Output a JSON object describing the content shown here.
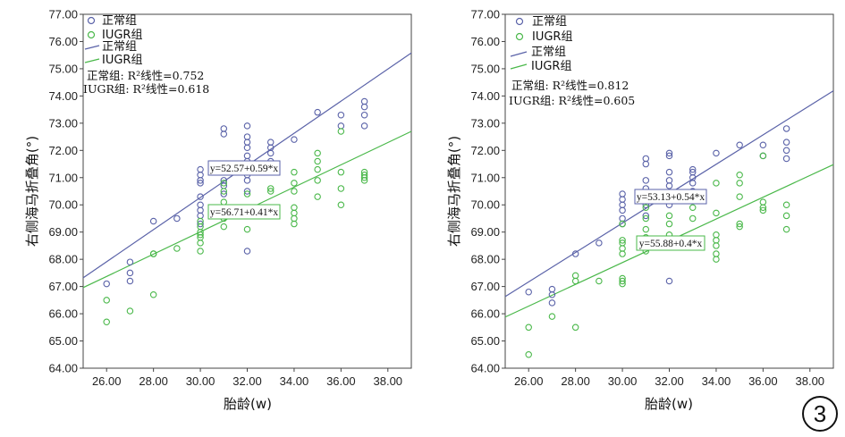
{
  "figure_badge": "3",
  "chart_data": [
    {
      "type": "scatter",
      "ylabel": "右侧海马折叠角(°)",
      "xlabel": "胎龄(w)",
      "xlim": [
        25,
        39
      ],
      "ylim": [
        64,
        77
      ],
      "xticks": [
        "26.00",
        "28.00",
        "30.00",
        "32.00",
        "34.00",
        "36.00",
        "38.00"
      ],
      "xtick_values": [
        26,
        28,
        30,
        32,
        34,
        36,
        38
      ],
      "yticks": [
        "64.00",
        "65.00",
        "66.00",
        "67.00",
        "68.00",
        "69.00",
        "70.00",
        "71.00",
        "72.00",
        "73.00",
        "74.00",
        "75.00",
        "76.00",
        "77.00"
      ],
      "ytick_values": [
        64,
        65,
        66,
        67,
        68,
        69,
        70,
        71,
        72,
        73,
        74,
        75,
        76,
        77
      ],
      "legend": [
        "正常组",
        "IUGR组",
        "正常组",
        "IUGR组"
      ],
      "r2_text": [
        "正常组: R²线性=0.752",
        "IUGR组: R²线性=0.618"
      ],
      "series": [
        {
          "name": "正常组",
          "color": "#5a62a8",
          "fit": {
            "intercept": 52.57,
            "slope": 0.59
          },
          "equation": "y=52.57+0.59*x",
          "points": [
            [
              26,
              67.1
            ],
            [
              27,
              67.9
            ],
            [
              27,
              67.5
            ],
            [
              27,
              67.2
            ],
            [
              28,
              69.4
            ],
            [
              29,
              69.5
            ],
            [
              30,
              71.3
            ],
            [
              30,
              71.1
            ],
            [
              30,
              70.9
            ],
            [
              30,
              70.8
            ],
            [
              30,
              70.3
            ],
            [
              30,
              70.0
            ],
            [
              30,
              69.8
            ],
            [
              30,
              69.6
            ],
            [
              30,
              69.3
            ],
            [
              31,
              72.8
            ],
            [
              31,
              72.6
            ],
            [
              31,
              71.5
            ],
            [
              31,
              71.2
            ],
            [
              31,
              70.9
            ],
            [
              31,
              70.7
            ],
            [
              31,
              70.4
            ],
            [
              32,
              72.9
            ],
            [
              32,
              72.5
            ],
            [
              32,
              72.3
            ],
            [
              32,
              72.1
            ],
            [
              32,
              71.8
            ],
            [
              32,
              71.6
            ],
            [
              32,
              71.3
            ],
            [
              32,
              71.1
            ],
            [
              32,
              70.9
            ],
            [
              32,
              70.5
            ],
            [
              32,
              68.3
            ],
            [
              33,
              72.3
            ],
            [
              33,
              72.1
            ],
            [
              33,
              71.9
            ],
            [
              33,
              71.6
            ],
            [
              33,
              71.4
            ],
            [
              34,
              72.4
            ],
            [
              35,
              73.4
            ],
            [
              36,
              73.3
            ],
            [
              36,
              72.9
            ],
            [
              37,
              73.8
            ],
            [
              37,
              73.6
            ],
            [
              37,
              73.3
            ],
            [
              37,
              72.9
            ]
          ]
        },
        {
          "name": "IUGR组",
          "color": "#4ab84a",
          "fit": {
            "intercept": 56.71,
            "slope": 0.41
          },
          "equation": "y=56.71+0.41*x",
          "points": [
            [
              26,
              66.5
            ],
            [
              26,
              65.7
            ],
            [
              27,
              66.1
            ],
            [
              28,
              66.7
            ],
            [
              28,
              68.2
            ],
            [
              28,
              68.2
            ],
            [
              29,
              68.4
            ],
            [
              30,
              69.4
            ],
            [
              30,
              69.2
            ],
            [
              30,
              69.0
            ],
            [
              30,
              68.9
            ],
            [
              30,
              68.8
            ],
            [
              30,
              68.6
            ],
            [
              30,
              68.3
            ],
            [
              31,
              70.8
            ],
            [
              31,
              70.5
            ],
            [
              31,
              70.1
            ],
            [
              31,
              69.8
            ],
            [
              31,
              69.5
            ],
            [
              31,
              69.2
            ],
            [
              32,
              70.4
            ],
            [
              32,
              69.9
            ],
            [
              32,
              69.6
            ],
            [
              32,
              69.1
            ],
            [
              33,
              70.6
            ],
            [
              33,
              70.5
            ],
            [
              34,
              71.2
            ],
            [
              34,
              70.8
            ],
            [
              34,
              70.5
            ],
            [
              34,
              69.9
            ],
            [
              34,
              69.7
            ],
            [
              34,
              69.5
            ],
            [
              34,
              69.3
            ],
            [
              35,
              71.9
            ],
            [
              35,
              71.6
            ],
            [
              35,
              71.3
            ],
            [
              35,
              70.9
            ],
            [
              35,
              70.3
            ],
            [
              36,
              72.7
            ],
            [
              36,
              71.2
            ],
            [
              36,
              70.6
            ],
            [
              36,
              70.0
            ],
            [
              37,
              71.2
            ],
            [
              37,
              71.1
            ],
            [
              37,
              71.0
            ],
            [
              37,
              70.9
            ]
          ]
        }
      ]
    },
    {
      "type": "scatter",
      "ylabel": "右侧海马折叠角(°)",
      "xlabel": "胎龄(w)",
      "xlim": [
        25,
        39
      ],
      "ylim": [
        64,
        77
      ],
      "xticks": [
        "26.00",
        "28.00",
        "30.00",
        "32.00",
        "34.00",
        "36.00",
        "38.00"
      ],
      "xtick_values": [
        26,
        28,
        30,
        32,
        34,
        36,
        38
      ],
      "yticks": [
        "64.00",
        "65.00",
        "66.00",
        "67.00",
        "68.00",
        "69.00",
        "70.00",
        "71.00",
        "72.00",
        "73.00",
        "74.00",
        "75.00",
        "76.00",
        "77.00"
      ],
      "ytick_values": [
        64,
        65,
        66,
        67,
        68,
        69,
        70,
        71,
        72,
        73,
        74,
        75,
        76,
        77
      ],
      "legend": [
        "正常组",
        "IUGR组",
        "正常组",
        "IUGR组"
      ],
      "r2_text": [
        "正常组: R²线性=0.812",
        "IUGR组: R²线性=0.605"
      ],
      "series": [
        {
          "name": "正常组",
          "color": "#5a62a8",
          "fit": {
            "intercept": 53.13,
            "slope": 0.54
          },
          "equation": "y=53.13+0.54*x",
          "points": [
            [
              26,
              66.8
            ],
            [
              27,
              66.9
            ],
            [
              27,
              66.7
            ],
            [
              27,
              66.4
            ],
            [
              28,
              68.2
            ],
            [
              29,
              68.6
            ],
            [
              30,
              70.4
            ],
            [
              30,
              70.2
            ],
            [
              30,
              70.0
            ],
            [
              30,
              69.8
            ],
            [
              30,
              69.5
            ],
            [
              30,
              69.3
            ],
            [
              31,
              71.7
            ],
            [
              31,
              71.5
            ],
            [
              31,
              70.9
            ],
            [
              31,
              70.6
            ],
            [
              31,
              70.3
            ],
            [
              31,
              70.0
            ],
            [
              31,
              69.6
            ],
            [
              32,
              71.9
            ],
            [
              32,
              71.8
            ],
            [
              32,
              71.2
            ],
            [
              32,
              70.9
            ],
            [
              32,
              70.7
            ],
            [
              32,
              70.3
            ],
            [
              32,
              70.0
            ],
            [
              32,
              67.2
            ],
            [
              33,
              71.3
            ],
            [
              33,
              71.2
            ],
            [
              33,
              71.0
            ],
            [
              33,
              70.8
            ],
            [
              33,
              70.5
            ],
            [
              34,
              71.9
            ],
            [
              35,
              72.2
            ],
            [
              36,
              72.2
            ],
            [
              36,
              71.8
            ],
            [
              37,
              72.8
            ],
            [
              37,
              72.3
            ],
            [
              37,
              72.0
            ],
            [
              37,
              71.7
            ]
          ]
        },
        {
          "name": "IUGR组",
          "color": "#4ab84a",
          "fit": {
            "intercept": 55.88,
            "slope": 0.4
          },
          "equation": "y=55.88+0.4*x",
          "points": [
            [
              26,
              65.5
            ],
            [
              26,
              64.5
            ],
            [
              27,
              65.9
            ],
            [
              28,
              65.5
            ],
            [
              28,
              67.4
            ],
            [
              28,
              67.2
            ],
            [
              29,
              67.2
            ],
            [
              30,
              69.3
            ],
            [
              30,
              68.7
            ],
            [
              30,
              68.6
            ],
            [
              30,
              68.4
            ],
            [
              30,
              68.2
            ],
            [
              30,
              67.3
            ],
            [
              30,
              67.2
            ],
            [
              30,
              67.1
            ],
            [
              31,
              69.9
            ],
            [
              31,
              69.5
            ],
            [
              31,
              69.1
            ],
            [
              31,
              68.8
            ],
            [
              31,
              68.5
            ],
            [
              31,
              68.3
            ],
            [
              32,
              69.6
            ],
            [
              32,
              69.3
            ],
            [
              32,
              68.9
            ],
            [
              32,
              68.6
            ],
            [
              33,
              69.9
            ],
            [
              33,
              69.5
            ],
            [
              34,
              70.8
            ],
            [
              34,
              69.7
            ],
            [
              34,
              68.9
            ],
            [
              34,
              68.7
            ],
            [
              34,
              68.5
            ],
            [
              34,
              68.2
            ],
            [
              34,
              68.0
            ],
            [
              35,
              71.1
            ],
            [
              35,
              70.8
            ],
            [
              35,
              70.3
            ],
            [
              35,
              69.3
            ],
            [
              35,
              69.2
            ],
            [
              36,
              71.8
            ],
            [
              36,
              70.1
            ],
            [
              36,
              69.9
            ],
            [
              36,
              69.8
            ],
            [
              37,
              70.0
            ],
            [
              37,
              69.6
            ],
            [
              37,
              69.1
            ]
          ]
        }
      ]
    }
  ]
}
